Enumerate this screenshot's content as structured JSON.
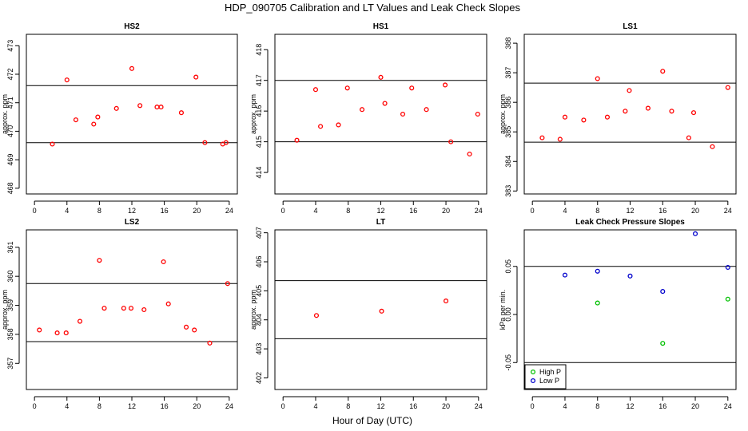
{
  "figure": {
    "title": "HDP_090705  Calibration and LT Values and Leak Check Slopes",
    "xlabel": "Hour of Day (UTC)"
  },
  "chart_data": [
    {
      "type": "scatter",
      "title": "HS2",
      "ylabel": "approx. ppm",
      "xlim": [
        -1,
        25
      ],
      "ylim": [
        467.8,
        473.4
      ],
      "xticks": [
        0,
        4,
        8,
        12,
        16,
        20,
        24
      ],
      "yticks": [
        468,
        469,
        470,
        471,
        472,
        473
      ],
      "hlines": [
        469.6,
        471.6
      ],
      "series": [
        {
          "color": "#ff0000",
          "x": [
            2.2,
            4.0,
            5.1,
            7.3,
            7.8,
            10.1,
            12.0,
            13.0,
            15.1,
            15.6,
            18.1,
            19.9,
            21.0,
            23.2,
            23.6
          ],
          "y": [
            469.55,
            471.8,
            470.4,
            470.25,
            470.5,
            470.8,
            472.2,
            470.9,
            470.85,
            470.85,
            470.65,
            471.9,
            469.6,
            469.55,
            469.6
          ]
        }
      ]
    },
    {
      "type": "scatter",
      "title": "HS1",
      "ylabel": "approx. ppm",
      "xlim": [
        -1,
        25
      ],
      "ylim": [
        413.3,
        418.5
      ],
      "xticks": [
        0,
        4,
        8,
        12,
        16,
        20,
        24
      ],
      "yticks": [
        414,
        415,
        416,
        417,
        418
      ],
      "hlines": [
        415.0,
        417.0
      ],
      "series": [
        {
          "color": "#ff0000",
          "x": [
            1.7,
            4.0,
            4.6,
            6.8,
            7.9,
            9.7,
            12.0,
            12.5,
            14.7,
            15.8,
            17.6,
            19.9,
            20.6,
            22.9,
            23.9
          ],
          "y": [
            415.05,
            416.7,
            415.5,
            415.55,
            416.75,
            416.05,
            417.1,
            416.25,
            415.9,
            416.75,
            416.05,
            416.85,
            415.0,
            414.6,
            415.9
          ]
        }
      ]
    },
    {
      "type": "scatter",
      "title": "LS1",
      "ylabel": "approx. ppm",
      "xlim": [
        -1,
        25
      ],
      "ylim": [
        382.9,
        388.3
      ],
      "xticks": [
        0,
        4,
        8,
        12,
        16,
        20,
        24
      ],
      "yticks": [
        383,
        384,
        385,
        386,
        387,
        388
      ],
      "hlines": [
        384.65,
        386.65
      ],
      "series": [
        {
          "color": "#ff0000",
          "x": [
            1.2,
            3.4,
            4.0,
            6.3,
            8.0,
            9.2,
            11.4,
            11.9,
            14.2,
            16.0,
            17.1,
            19.2,
            19.8,
            22.1,
            24.0
          ],
          "y": [
            384.8,
            384.75,
            385.5,
            385.4,
            386.8,
            385.5,
            385.7,
            386.4,
            385.8,
            387.05,
            385.7,
            384.8,
            385.65,
            384.5,
            386.5
          ]
        }
      ]
    },
    {
      "type": "scatter",
      "title": "LS2",
      "ylabel": "approx. ppm",
      "xlim": [
        -1,
        25
      ],
      "ylim": [
        356.1,
        361.6
      ],
      "xticks": [
        0,
        4,
        8,
        12,
        16,
        20,
        24
      ],
      "yticks": [
        357,
        358,
        359,
        360,
        361
      ],
      "hlines": [
        357.75,
        359.75
      ],
      "series": [
        {
          "color": "#ff0000",
          "x": [
            0.6,
            2.8,
            3.9,
            5.6,
            8.0,
            8.6,
            11.0,
            11.9,
            13.5,
            15.9,
            16.5,
            18.7,
            19.7,
            21.6,
            23.8
          ],
          "y": [
            358.15,
            358.05,
            358.05,
            358.45,
            360.55,
            358.9,
            358.9,
            358.9,
            358.85,
            360.5,
            359.05,
            358.25,
            358.15,
            357.7,
            359.75
          ]
        }
      ]
    },
    {
      "type": "scatter",
      "title": "LT",
      "ylabel": "approx. ppm",
      "xlim": [
        -1,
        25
      ],
      "ylim": [
        401.6,
        407.1
      ],
      "xticks": [
        0,
        4,
        8,
        12,
        16,
        20,
        24
      ],
      "yticks": [
        402,
        403,
        404,
        405,
        406,
        407
      ],
      "hlines": [
        403.35,
        405.35
      ],
      "series": [
        {
          "color": "#ff0000",
          "x": [
            4.1,
            12.1,
            20.0
          ],
          "y": [
            404.15,
            404.3,
            404.65
          ]
        }
      ]
    },
    {
      "type": "scatter",
      "title": "Leak Check Pressure Slopes",
      "ylabel": "kPa per min.",
      "xlim": [
        -1,
        25
      ],
      "ylim": [
        -0.078,
        0.088
      ],
      "xticks": [
        0,
        4,
        8,
        12,
        16,
        20,
        24
      ],
      "yticks": [
        -0.05,
        0.0,
        0.05
      ],
      "ytick_labels": [
        "-0.05",
        "0.00",
        "0.05"
      ],
      "hlines": [
        -0.05,
        0.05
      ],
      "legend_position": "bottom-left",
      "series": [
        {
          "name": "High P",
          "color": "#00c000",
          "x": [
            8.0,
            16.0,
            24.0
          ],
          "y": [
            0.012,
            -0.03,
            0.016
          ]
        },
        {
          "name": "Low P",
          "color": "#0000cc",
          "x": [
            4.0,
            8.0,
            12.0,
            16.0,
            20.0,
            24.0
          ],
          "y": [
            0.041,
            0.045,
            0.04,
            0.024,
            0.084,
            0.049
          ]
        }
      ]
    }
  ]
}
